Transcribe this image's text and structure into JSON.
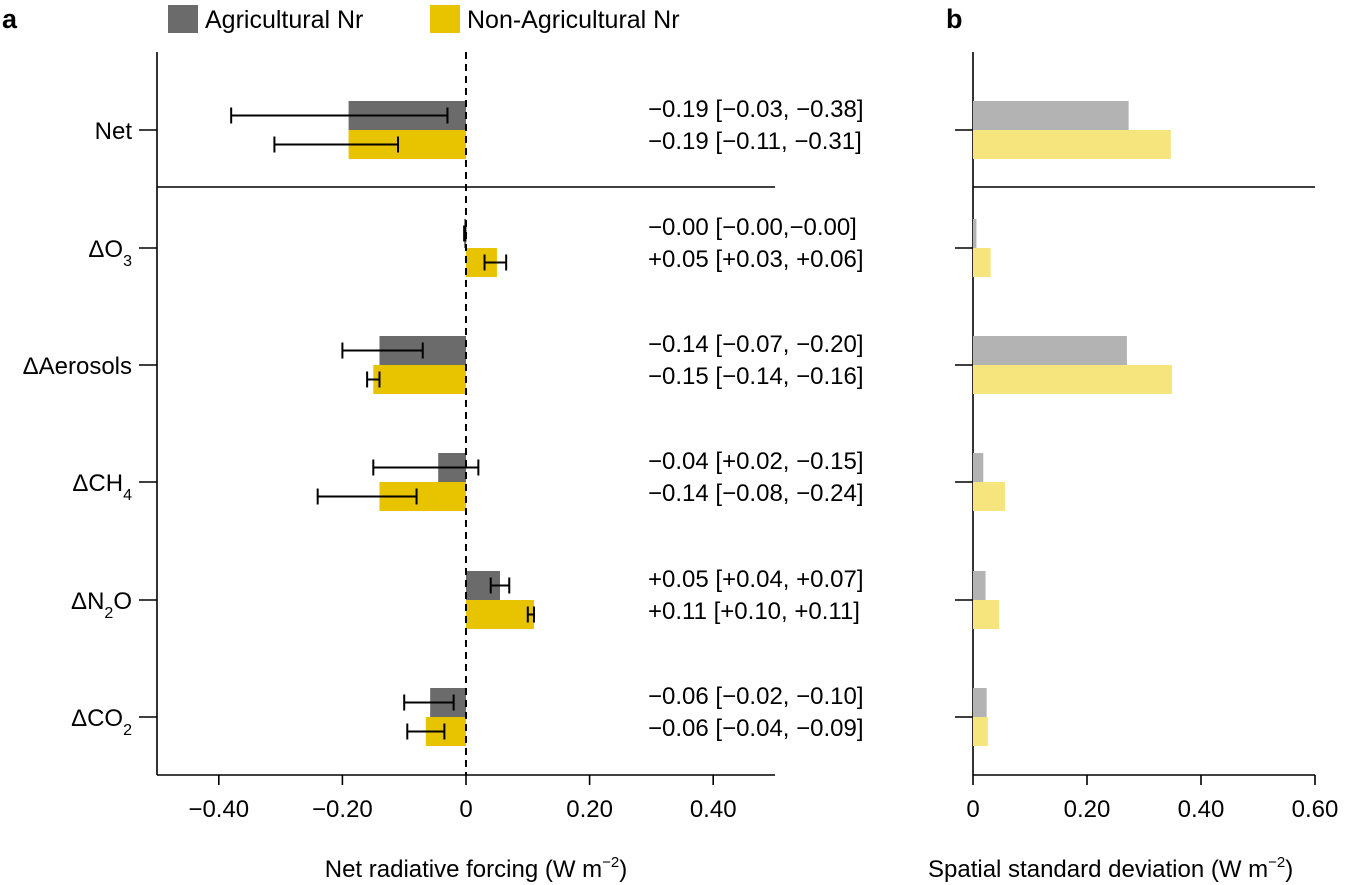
{
  "panel_a_letter": "a",
  "panel_b_letter": "b",
  "colors": {
    "agri": "#6b6b6b",
    "nonagri": "#e8c400",
    "agri_light": "#b3b3b3",
    "nonagri_light": "#f6e47d"
  },
  "chart_data": [
    {
      "type": "bar",
      "orientation": "horizontal",
      "panel": "a",
      "title": "",
      "xlabel": "Net radiative forcing (W m",
      "xlabel_sup": "−2",
      "xlabel_close": ")",
      "xlim": [
        -0.5,
        0.5
      ],
      "xticks": [
        -0.4,
        -0.2,
        0,
        0.2,
        0.4
      ],
      "xtick_labels": [
        "−0.40",
        "−0.20",
        "0",
        "0.20",
        "0.40"
      ],
      "legend": [
        "Agricultural Nr",
        "Non-Agricultural Nr"
      ],
      "legend_position": "top",
      "categories": [
        {
          "base": "Net",
          "sub": "",
          "tail": ""
        },
        {
          "base": "ΔO",
          "sub": "3",
          "tail": ""
        },
        {
          "base": "ΔAerosols",
          "sub": "",
          "tail": ""
        },
        {
          "base": "ΔCH",
          "sub": "4",
          "tail": ""
        },
        {
          "base": "ΔN",
          "sub": "2",
          "tail": "O"
        },
        {
          "base": "ΔCO",
          "sub": "2",
          "tail": ""
        }
      ],
      "series": [
        {
          "name": "Agricultural Nr",
          "values": [
            -0.19,
            -0.003,
            -0.14,
            -0.045,
            0.055,
            -0.058
          ],
          "err_low": [
            -0.38,
            -0.003,
            -0.2,
            -0.15,
            0.04,
            -0.1
          ],
          "err_high": [
            -0.03,
            -0.001,
            -0.07,
            0.02,
            0.07,
            -0.02
          ],
          "labels": [
            "−0.19 [−0.03, −0.38]",
            "−0.00 [−0.00,−0.00]",
            "−0.14 [−0.07, −0.20]",
            "−0.04 [+0.02, −0.15]",
            "+0.05 [+0.04, +0.07]",
            "−0.06 [−0.02, −0.10]"
          ]
        },
        {
          "name": "Non-Agricultural Nr",
          "values": [
            -0.19,
            0.05,
            -0.15,
            -0.14,
            0.11,
            -0.065
          ],
          "err_low": [
            -0.31,
            0.03,
            -0.16,
            -0.24,
            0.1,
            -0.095
          ],
          "err_high": [
            -0.11,
            0.065,
            -0.14,
            -0.08,
            0.11,
            -0.035
          ],
          "labels": [
            "−0.19 [−0.11, −0.31]",
            "+0.05 [+0.03, +0.06]",
            "−0.15 [−0.14, −0.16]",
            "−0.14 [−0.08, −0.24]",
            "+0.11 [+0.10, +0.11]",
            "−0.06 [−0.04, −0.09]"
          ]
        }
      ]
    },
    {
      "type": "bar",
      "orientation": "horizontal",
      "panel": "b",
      "title": "",
      "xlabel": "Spatial standard deviation (W m",
      "xlabel_sup": "−2",
      "xlabel_close": ")",
      "xlim": [
        0,
        0.6
      ],
      "xticks": [
        0,
        0.2,
        0.4,
        0.6
      ],
      "xtick_labels": [
        "0",
        "0.20",
        "0.40",
        "0.60"
      ],
      "series": [
        {
          "name": "Agricultural Nr",
          "values": [
            0.273,
            0.006,
            0.27,
            0.018,
            0.022,
            0.024
          ]
        },
        {
          "name": "Non-Agricultural Nr",
          "values": [
            0.347,
            0.031,
            0.349,
            0.056,
            0.046,
            0.026
          ]
        }
      ]
    }
  ]
}
